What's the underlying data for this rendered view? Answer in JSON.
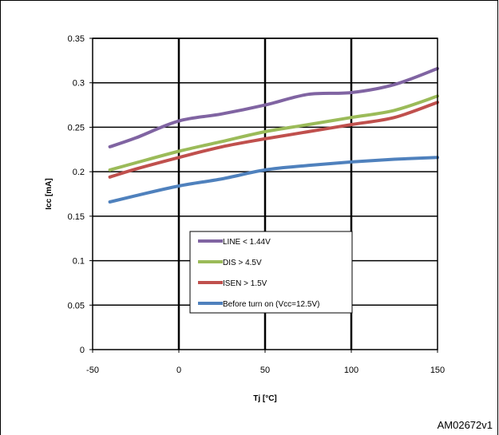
{
  "chart_data": {
    "type": "line",
    "xlabel": "Tj [°C]",
    "ylabel": "Icc [mA]",
    "xlim": [
      -50,
      150
    ],
    "ylim": [
      0,
      0.35
    ],
    "xticks": [
      -50,
      0,
      50,
      100,
      150
    ],
    "yticks": [
      0,
      0.05,
      0.1,
      0.15,
      0.2,
      0.25,
      0.3,
      0.35
    ],
    "grid": true,
    "legend_position": "bottom-center",
    "series": [
      {
        "name": "LINE < 1.44V",
        "color": "#8064a2",
        "x": [
          -40,
          -25,
          0,
          25,
          50,
          75,
          100,
          125,
          150
        ],
        "y": [
          0.228,
          0.238,
          0.257,
          0.265,
          0.275,
          0.287,
          0.289,
          0.298,
          0.316
        ]
      },
      {
        "name": "DIS > 4.5V",
        "color": "#9bbb59",
        "x": [
          -40,
          -25,
          0,
          25,
          50,
          75,
          100,
          125,
          150
        ],
        "y": [
          0.202,
          0.21,
          0.223,
          0.234,
          0.245,
          0.253,
          0.261,
          0.269,
          0.285
        ]
      },
      {
        "name": "ISEN > 1.5V",
        "color": "#c0504d",
        "x": [
          -40,
          -25,
          0,
          25,
          50,
          75,
          100,
          125,
          150
        ],
        "y": [
          0.194,
          0.203,
          0.216,
          0.228,
          0.237,
          0.245,
          0.253,
          0.261,
          0.278
        ]
      },
      {
        "name": "Before turn on (Vcc=12.5V)",
        "color": "#4f81bd",
        "x": [
          -40,
          -25,
          0,
          25,
          50,
          75,
          100,
          125,
          150
        ],
        "y": [
          0.166,
          0.173,
          0.184,
          0.192,
          0.202,
          0.207,
          0.211,
          0.214,
          0.216
        ]
      }
    ]
  },
  "figure_code": "AM02672v1"
}
